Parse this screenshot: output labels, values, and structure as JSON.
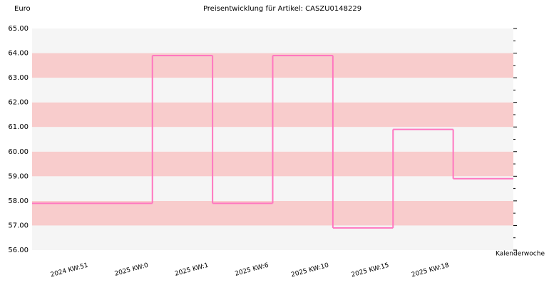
{
  "chart_data": {
    "type": "step",
    "title": "Preisentwicklung für Artikel: CASZU0148229",
    "y_label": "Euro",
    "x_label": "Kalenderwoche",
    "categories": [
      "2024 KW:51",
      "2025 KW:0",
      "2025 KW:1",
      "2025 KW:6",
      "2025 KW:10",
      "2025 KW:15",
      "2025 KW:18"
    ],
    "values": [
      57.9,
      63.9,
      57.9,
      63.9,
      56.9,
      60.9,
      58.9
    ],
    "color": "#ff77c0",
    "band_colors": [
      "#f5f5f5",
      "#f8cccc"
    ],
    "ylim": [
      56,
      65
    ],
    "yticks": [
      {
        "value": 56,
        "label": "56.00"
      },
      {
        "value": 57,
        "label": "57.00"
      },
      {
        "value": 58,
        "label": "58.00"
      },
      {
        "value": 59,
        "label": "59.00"
      },
      {
        "value": 60,
        "label": "60.00"
      },
      {
        "value": 61,
        "label": "61.00"
      },
      {
        "value": 62,
        "label": "62.00"
      },
      {
        "value": 63,
        "label": "63.00"
      },
      {
        "value": 64,
        "label": "64.00"
      },
      {
        "value": 65,
        "label": "65.00"
      }
    ]
  }
}
